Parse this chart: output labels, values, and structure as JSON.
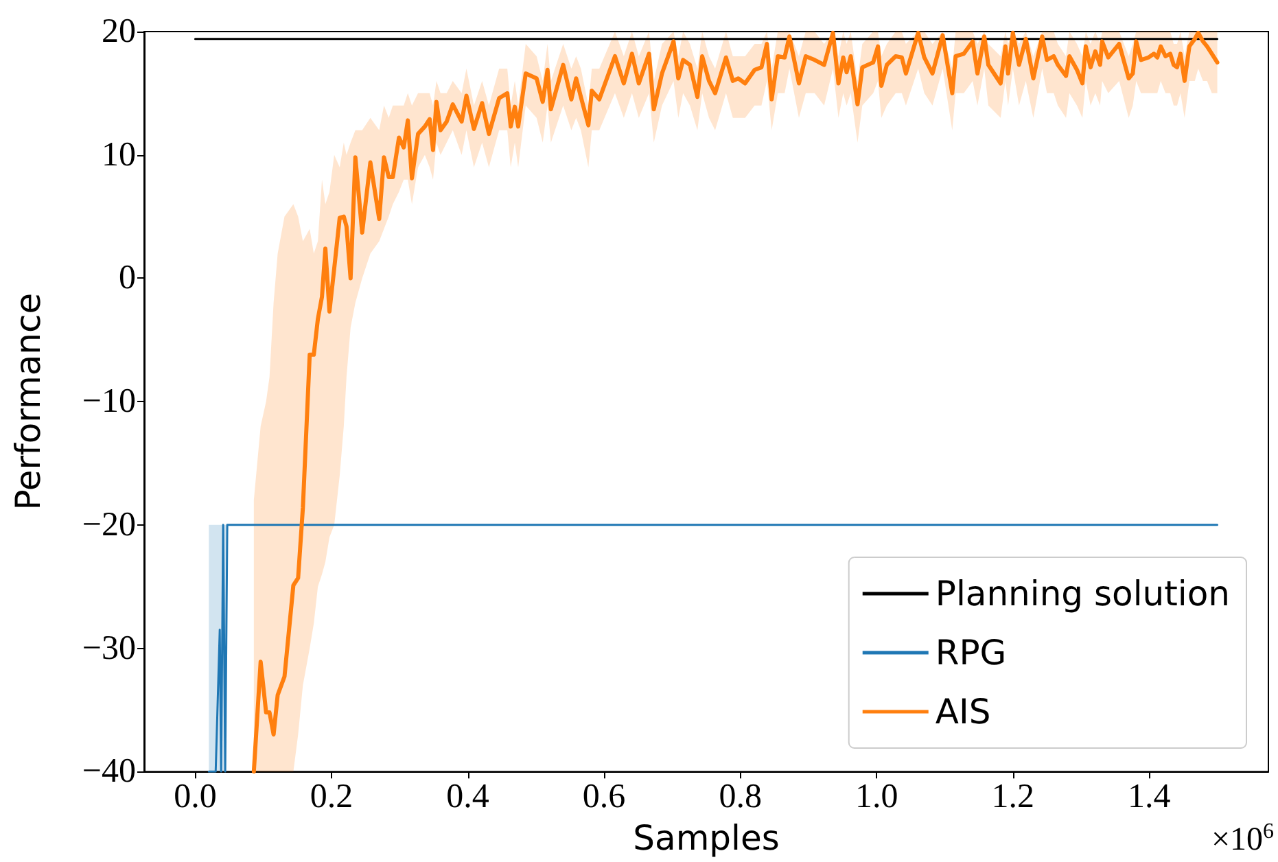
{
  "chart_data": {
    "type": "line",
    "xlabel": "Samples",
    "ylabel": "Performance",
    "annotations": [
      "×10$^{6}$"
    ],
    "xlim": [
      -0.075,
      1.575
    ],
    "xticks": [
      {
        "value": 0,
        "label": "0.0"
      },
      {
        "value": 0.2,
        "label": "0.2"
      },
      {
        "value": 0.4,
        "label": "0.4"
      },
      {
        "value": 0.6,
        "label": "0.6"
      },
      {
        "value": 0.8,
        "label": "0.8"
      },
      {
        "value": 1.0,
        "label": "1.0"
      },
      {
        "value": 1.2,
        "label": "1.2"
      },
      {
        "value": 1.4,
        "label": "1.4"
      }
    ],
    "ylim": [
      -40,
      20
    ],
    "yticks": [
      -40,
      -30,
      -20,
      -10,
      0,
      10,
      20
    ],
    "grid": false,
    "legend": "bottom right",
    "marker": "none",
    "line_style": "solid",
    "series": [
      {
        "name": "Planning solution",
        "color": "#000000",
        "x": [
          0,
          1.5
        ],
        "values": [
          19.4,
          19.4
        ]
      },
      {
        "name": "RPG",
        "color": "#1f77b4",
        "x": [
          0.02,
          0.03,
          0.036,
          0.038,
          0.041,
          0.044,
          0.047,
          1.5
        ],
        "values": [
          -40,
          -40,
          -28.5,
          -40,
          -20,
          -40,
          -20,
          -20
        ],
        "lower": [
          -40,
          -40,
          -40,
          -40,
          -40,
          -40,
          -20,
          -20
        ],
        "upper": [
          -20,
          -20,
          -20,
          -20,
          -20,
          -20,
          -20,
          -20
        ]
      },
      {
        "name": "AIS",
        "color": "#ff7f0e",
        "x": [
          0.086,
          0.096,
          0.104,
          0.109,
          0.115,
          0.121,
          0.131,
          0.144,
          0.151,
          0.158,
          0.168,
          0.174,
          0.18,
          0.186,
          0.191,
          0.197,
          0.204,
          0.212,
          0.218,
          0.222,
          0.228,
          0.235,
          0.245,
          0.257,
          0.27,
          0.277,
          0.284,
          0.29,
          0.299,
          0.306,
          0.312,
          0.318,
          0.327,
          0.337,
          0.344,
          0.349,
          0.354,
          0.36,
          0.369,
          0.378,
          0.391,
          0.398,
          0.409,
          0.421,
          0.431,
          0.446,
          0.458,
          0.463,
          0.469,
          0.474,
          0.485,
          0.501,
          0.51,
          0.517,
          0.522,
          0.54,
          0.552,
          0.559,
          0.566,
          0.577,
          0.582,
          0.593,
          0.616,
          0.629,
          0.641,
          0.651,
          0.666,
          0.673,
          0.685,
          0.702,
          0.709,
          0.716,
          0.726,
          0.737,
          0.744,
          0.754,
          0.763,
          0.779,
          0.789,
          0.797,
          0.807,
          0.821,
          0.831,
          0.839,
          0.846,
          0.855,
          0.865,
          0.872,
          0.886,
          0.896,
          0.909,
          0.923,
          0.936,
          0.944,
          0.951,
          0.956,
          0.962,
          0.972,
          0.979,
          0.995,
          1.002,
          1.007,
          1.015,
          1.028,
          1.037,
          1.043,
          1.061,
          1.07,
          1.082,
          1.097,
          1.111,
          1.116,
          1.128,
          1.141,
          1.148,
          1.158,
          1.164,
          1.182,
          1.189,
          1.193,
          1.2,
          1.209,
          1.219,
          1.23,
          1.243,
          1.25,
          1.26,
          1.266,
          1.278,
          1.283,
          1.294,
          1.302,
          1.307,
          1.314,
          1.321,
          1.328,
          1.331,
          1.34,
          1.356,
          1.37,
          1.376,
          1.381,
          1.388,
          1.399,
          1.407,
          1.412,
          1.417,
          1.424,
          1.431,
          1.436,
          1.441,
          1.446,
          1.452,
          1.459,
          1.467,
          1.472,
          1.479,
          1.485,
          1.492,
          1.5
        ],
        "values": [
          -40,
          -31.1,
          -35.2,
          -35.2,
          -37,
          -33.8,
          -32.3,
          -24.9,
          -24.3,
          -18.6,
          -6.2,
          -6.2,
          -3.3,
          -1.5,
          2.4,
          -2.7,
          0.8,
          4.9,
          5.0,
          4.2,
          0.0,
          9.8,
          3.7,
          9.4,
          4.8,
          9.8,
          8.2,
          8.2,
          11.4,
          10.6,
          12.8,
          8.1,
          11.7,
          12.3,
          12.9,
          10.4,
          14.3,
          12.0,
          12.7,
          14.1,
          12.7,
          14.8,
          12.1,
          14.2,
          11.7,
          14.6,
          15.0,
          12.3,
          13.9,
          12.3,
          16.6,
          16.2,
          14.3,
          16.9,
          13.7,
          17.3,
          14.5,
          16.2,
          14.7,
          12.4,
          15.2,
          14.5,
          18.0,
          15.8,
          18.2,
          15.8,
          18.2,
          13.7,
          16.6,
          19.2,
          16.2,
          17.7,
          17.3,
          14.7,
          18.0,
          16.0,
          15.0,
          17.9,
          16.0,
          16.2,
          15.8,
          16.9,
          17.1,
          19.0,
          14.5,
          18.0,
          17.9,
          19.6,
          15.8,
          18.0,
          17.7,
          17.3,
          19.9,
          15.8,
          17.9,
          16.7,
          18.0,
          14.1,
          17.1,
          17.5,
          18.8,
          15.6,
          17.3,
          18.0,
          17.9,
          16.6,
          19.9,
          17.9,
          16.6,
          19.7,
          15.0,
          18.0,
          18.2,
          19.2,
          16.6,
          19.6,
          17.3,
          15.8,
          18.8,
          16.6,
          19.9,
          17.3,
          19.4,
          16.2,
          19.6,
          17.7,
          18.0,
          17.3,
          16.4,
          18.0,
          16.9,
          15.8,
          18.8,
          17.1,
          18.4,
          17.3,
          19.2,
          17.9,
          19.0,
          16.2,
          16.6,
          19.2,
          17.7,
          17.9,
          18.2,
          17.9,
          18.8,
          18.0,
          18.2,
          17.3,
          17.1,
          18.2,
          16.0,
          18.8,
          19.4,
          19.9,
          19.2,
          18.8,
          18.2,
          17.5
        ],
        "upper": [
          -18,
          -12,
          -10,
          -8,
          -2,
          2,
          5,
          6,
          5,
          3,
          4,
          2,
          3,
          8,
          6,
          7,
          10,
          9,
          11,
          10,
          11,
          12,
          12,
          13,
          12,
          14,
          13,
          14,
          14,
          14,
          15,
          14,
          15,
          15,
          15,
          14,
          16,
          15,
          15,
          16,
          15,
          17,
          14,
          16,
          14,
          17,
          17,
          14,
          16,
          14,
          19,
          18,
          16,
          19,
          16,
          19,
          17,
          18,
          17,
          14,
          17,
          17,
          20,
          18,
          20,
          18,
          20,
          16,
          19,
          20,
          18,
          20,
          19,
          17,
          20,
          18,
          17,
          20,
          18,
          18,
          18,
          19,
          19,
          20,
          17,
          20,
          20,
          20,
          18,
          20,
          20,
          19,
          20,
          18,
          20,
          19,
          20,
          16,
          19,
          20,
          20,
          18,
          19,
          20,
          20,
          19,
          20,
          20,
          19,
          20,
          17,
          20,
          20,
          20,
          19,
          20,
          19,
          18,
          20,
          19,
          20,
          19,
          20,
          18,
          20,
          20,
          20,
          19,
          18,
          20,
          19,
          18,
          20,
          19,
          20,
          19,
          20,
          20,
          20,
          18,
          19,
          20,
          20,
          20,
          20,
          20,
          20,
          20,
          20,
          19,
          19,
          20,
          18,
          20,
          20,
          20,
          20,
          20,
          20,
          20
        ],
        "lower": [
          -40,
          -40,
          -40,
          -40,
          -40,
          -40,
          -40,
          -40,
          -37,
          -33,
          -30,
          -28,
          -25,
          -24,
          -23,
          -21,
          -20,
          -16,
          -12,
          -8,
          -4,
          -2,
          0,
          2,
          3,
          4,
          5,
          6,
          7,
          8,
          8,
          6,
          9,
          10,
          9,
          8,
          11,
          10,
          11,
          12,
          10,
          12,
          9,
          11,
          9,
          12,
          12,
          9,
          11,
          9,
          14,
          13,
          11,
          14,
          11,
          14,
          12,
          13,
          12,
          9,
          12,
          12,
          15,
          13,
          15,
          13,
          15,
          11,
          14,
          16,
          13,
          15,
          14,
          12,
          15,
          13,
          12,
          15,
          13,
          13,
          13,
          14,
          14,
          16,
          12,
          15,
          15,
          17,
          13,
          15,
          15,
          14,
          17,
          13,
          15,
          14,
          15,
          11,
          14,
          15,
          16,
          13,
          14,
          15,
          15,
          14,
          17,
          15,
          14,
          17,
          12,
          15,
          15,
          16,
          14,
          17,
          14,
          13,
          16,
          14,
          17,
          14,
          16,
          13,
          17,
          15,
          15,
          14,
          13,
          15,
          14,
          13,
          16,
          14,
          15,
          14,
          16,
          15,
          16,
          13,
          14,
          16,
          15,
          15,
          15,
          15,
          16,
          15,
          15,
          14,
          14,
          15,
          13,
          16,
          16,
          17,
          16,
          16,
          15,
          15
        ]
      }
    ]
  }
}
